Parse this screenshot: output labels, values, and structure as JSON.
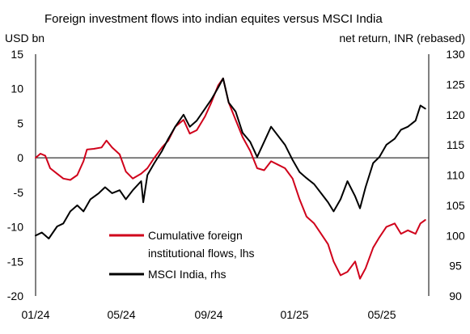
{
  "chart_data": {
    "type": "line",
    "title": "Foreign investment flows into indian equites versus MSCI India",
    "ylabel_left": "USD bn",
    "ylabel_right": "net return, INR (rebased)",
    "xlabel": "",
    "x_ticks": [
      "01/24",
      "05/24",
      "09/24",
      "01/25",
      "05/25"
    ],
    "y_left": {
      "min": -20,
      "max": 15,
      "ticks": [
        15,
        10,
        5,
        0,
        -5,
        -10,
        -15,
        -20
      ]
    },
    "y_right": {
      "min": 90,
      "max": 130,
      "ticks": [
        130,
        125,
        120,
        115,
        110,
        105,
        100,
        95,
        90
      ]
    },
    "grid": false,
    "zero_line": true,
    "legend": {
      "placement": "lower-center",
      "entries": [
        "Cumulative foreign institutional flows, lhs",
        "MSCI India, rhs"
      ],
      "lines": [
        [
          "Cumulative foreign",
          "institutional flows, lhs"
        ],
        [
          "MSCI India, rhs"
        ]
      ]
    },
    "series": [
      {
        "name": "Cumulative foreign institutional flows, lhs",
        "axis": "left",
        "color": "#d0021b",
        "points": [
          [
            "2024-01-01",
            0.0
          ],
          [
            "2024-01-08",
            0.6
          ],
          [
            "2024-01-15",
            0.3
          ],
          [
            "2024-01-22",
            -1.5
          ],
          [
            "2024-02-01",
            -2.3
          ],
          [
            "2024-02-10",
            -3.0
          ],
          [
            "2024-02-20",
            -3.2
          ],
          [
            "2024-03-01",
            -2.5
          ],
          [
            "2024-03-10",
            -0.5
          ],
          [
            "2024-03-15",
            1.2
          ],
          [
            "2024-03-25",
            1.3
          ],
          [
            "2024-04-05",
            1.5
          ],
          [
            "2024-04-12",
            2.5
          ],
          [
            "2024-04-20",
            1.5
          ],
          [
            "2024-05-01",
            0.5
          ],
          [
            "2024-05-10",
            -2.0
          ],
          [
            "2024-05-20",
            -3.0
          ],
          [
            "2024-06-01",
            -2.3
          ],
          [
            "2024-06-10",
            -1.5
          ],
          [
            "2024-06-20",
            0.0
          ],
          [
            "2024-07-01",
            1.5
          ],
          [
            "2024-07-10",
            2.5
          ],
          [
            "2024-07-20",
            4.5
          ],
          [
            "2024-08-01",
            5.5
          ],
          [
            "2024-08-10",
            3.5
          ],
          [
            "2024-08-20",
            4.0
          ],
          [
            "2024-09-01",
            6.0
          ],
          [
            "2024-09-10",
            8.0
          ],
          [
            "2024-09-20",
            10.5
          ],
          [
            "2024-09-27",
            11.5
          ],
          [
            "2024-10-05",
            8.0
          ],
          [
            "2024-10-15",
            5.5
          ],
          [
            "2024-10-25",
            3.0
          ],
          [
            "2024-11-05",
            1.0
          ],
          [
            "2024-11-15",
            -1.5
          ],
          [
            "2024-11-25",
            -1.8
          ],
          [
            "2024-12-05",
            -0.5
          ],
          [
            "2024-12-15",
            -1.0
          ],
          [
            "2024-12-25",
            -1.5
          ],
          [
            "2025-01-05",
            -3.0
          ],
          [
            "2025-01-15",
            -6.0
          ],
          [
            "2025-01-25",
            -8.5
          ],
          [
            "2025-02-05",
            -9.5
          ],
          [
            "2025-02-15",
            -11.0
          ],
          [
            "2025-02-25",
            -12.5
          ],
          [
            "2025-03-05",
            -15.0
          ],
          [
            "2025-03-15",
            -17.0
          ],
          [
            "2025-03-25",
            -16.5
          ],
          [
            "2025-04-05",
            -15.0
          ],
          [
            "2025-04-12",
            -17.5
          ],
          [
            "2025-04-20",
            -16.0
          ],
          [
            "2025-05-01",
            -13.0
          ],
          [
            "2025-05-10",
            -11.5
          ],
          [
            "2025-05-20",
            -10.0
          ],
          [
            "2025-06-01",
            -9.5
          ],
          [
            "2025-06-10",
            -11.0
          ],
          [
            "2025-06-20",
            -10.5
          ],
          [
            "2025-07-01",
            -11.0
          ],
          [
            "2025-07-08",
            -9.5
          ],
          [
            "2025-07-15",
            -9.0
          ]
        ]
      },
      {
        "name": "MSCI India, rhs",
        "axis": "right",
        "color": "#000000",
        "points": [
          [
            "2024-01-01",
            100.0
          ],
          [
            "2024-01-10",
            100.5
          ],
          [
            "2024-01-20",
            99.5
          ],
          [
            "2024-02-01",
            101.5
          ],
          [
            "2024-02-10",
            102.0
          ],
          [
            "2024-02-20",
            104.0
          ],
          [
            "2024-03-01",
            105.0
          ],
          [
            "2024-03-10",
            104.0
          ],
          [
            "2024-03-20",
            106.0
          ],
          [
            "2024-04-01",
            107.0
          ],
          [
            "2024-04-10",
            108.0
          ],
          [
            "2024-04-20",
            107.0
          ],
          [
            "2024-05-01",
            107.5
          ],
          [
            "2024-05-10",
            106.0
          ],
          [
            "2024-05-20",
            107.5
          ],
          [
            "2024-06-01",
            109.0
          ],
          [
            "2024-06-04",
            105.5
          ],
          [
            "2024-06-10",
            110.0
          ],
          [
            "2024-06-20",
            112.0
          ],
          [
            "2024-07-01",
            114.0
          ],
          [
            "2024-07-10",
            116.0
          ],
          [
            "2024-07-20",
            118.0
          ],
          [
            "2024-08-01",
            120.0
          ],
          [
            "2024-08-10",
            118.0
          ],
          [
            "2024-08-20",
            119.0
          ],
          [
            "2024-09-01",
            121.0
          ],
          [
            "2024-09-10",
            122.5
          ],
          [
            "2024-09-20",
            124.5
          ],
          [
            "2024-09-27",
            126.0
          ],
          [
            "2024-10-05",
            122.0
          ],
          [
            "2024-10-15",
            120.5
          ],
          [
            "2024-10-25",
            117.0
          ],
          [
            "2024-11-05",
            115.5
          ],
          [
            "2024-11-15",
            113.0
          ],
          [
            "2024-11-25",
            115.5
          ],
          [
            "2024-12-05",
            118.0
          ],
          [
            "2024-12-15",
            116.5
          ],
          [
            "2024-12-25",
            115.0
          ],
          [
            "2025-01-05",
            112.5
          ],
          [
            "2025-01-15",
            110.5
          ],
          [
            "2025-01-25",
            109.5
          ],
          [
            "2025-02-05",
            108.5
          ],
          [
            "2025-02-15",
            107.0
          ],
          [
            "2025-02-25",
            105.5
          ],
          [
            "2025-03-05",
            104.0
          ],
          [
            "2025-03-15",
            106.0
          ],
          [
            "2025-03-25",
            109.0
          ],
          [
            "2025-04-05",
            106.5
          ],
          [
            "2025-04-12",
            104.5
          ],
          [
            "2025-04-20",
            108.0
          ],
          [
            "2025-05-01",
            112.0
          ],
          [
            "2025-05-10",
            113.0
          ],
          [
            "2025-05-20",
            115.0
          ],
          [
            "2025-06-01",
            116.0
          ],
          [
            "2025-06-10",
            117.5
          ],
          [
            "2025-06-20",
            118.0
          ],
          [
            "2025-07-01",
            119.0
          ],
          [
            "2025-07-08",
            121.5
          ],
          [
            "2025-07-15",
            121.0
          ]
        ]
      }
    ]
  }
}
